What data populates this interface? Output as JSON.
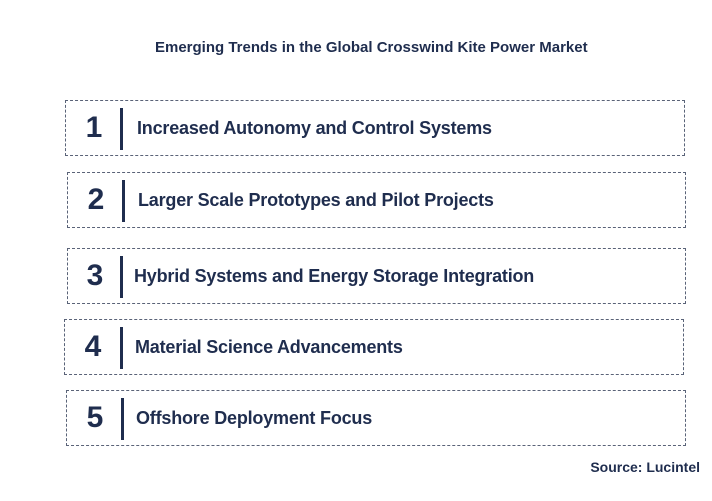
{
  "title": "Emerging Trends in the Global Crosswind Kite Power Market",
  "trends": [
    {
      "number": "1",
      "label": "Increased Autonomy and Control Systems"
    },
    {
      "number": "2",
      "label": "Larger Scale Prototypes and Pilot Projects"
    },
    {
      "number": "3",
      "label": "Hybrid Systems and Energy Storage Integration"
    },
    {
      "number": "4",
      "label": "Material Science Advancements"
    },
    {
      "number": "5",
      "label": "Offshore Deployment Focus"
    }
  ],
  "source": "Source: Lucintel",
  "colors": {
    "text": "#1f2d4e",
    "border": "#5a6378"
  }
}
